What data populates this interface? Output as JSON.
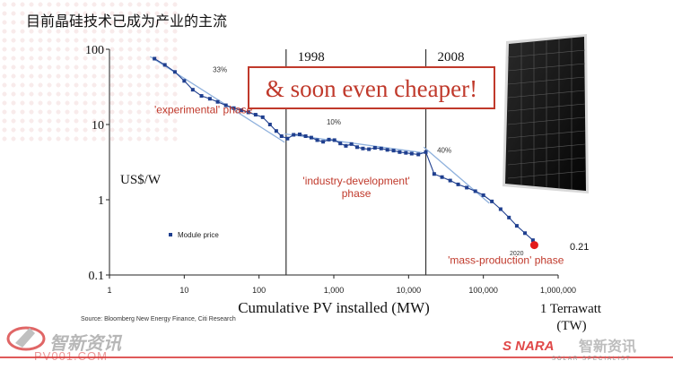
{
  "slide": {
    "title": "目前晶硅技术已成为产业的主流",
    "source": "Source: Bloomberg New Energy Finance, Citi Research"
  },
  "watermarks": {
    "left_cn": "智新资讯",
    "left_url": "PV001.COM",
    "right_cn": "智新资讯",
    "right_logo": "S NARA",
    "right_sub": "SOLAR SPECIALIST"
  },
  "colors": {
    "series": "#1f3f8f",
    "trend": "#8fb1dd",
    "annotation_red": "#c0392b",
    "highlight_dot": "#e41b1b",
    "footer_red": "#d93c3c"
  },
  "chart_data": {
    "type": "scatter",
    "x_scale": "log",
    "y_scale": "log",
    "xlim": [
      1,
      1000000
    ],
    "ylim": [
      0.1,
      100
    ],
    "xlabel": "Cumulative PV installed (MW)",
    "ylabel": "US$/W",
    "x_tick_labels": [
      "1",
      "10",
      "100",
      "1,000",
      "10,000",
      "100,000",
      "1,000,000"
    ],
    "x_ticks": [
      1,
      10,
      100,
      1000,
      10000,
      100000,
      1000000
    ],
    "y_tick_labels": [
      "0.1",
      "1",
      "10",
      "100"
    ],
    "y_ticks": [
      0.1,
      1,
      10,
      100
    ],
    "extra_x_label_1": "1 Terrawatt",
    "extra_x_label_2": "(TW)",
    "legend": "Module price",
    "legend_position": "left-middle",
    "vertical_markers": [
      {
        "x": 230,
        "label": "1998"
      },
      {
        "x": 17000,
        "label": "2008"
      }
    ],
    "learning_rates": [
      {
        "label": "33%",
        "x": 30,
        "y": 50
      },
      {
        "label": "10%",
        "x": 1000,
        "y": 10
      },
      {
        "label": "40%",
        "x": 30000,
        "y": 4.2
      }
    ],
    "phases": [
      {
        "line1": "'experimental' phase",
        "line2": "",
        "x": 18,
        "y": 14
      },
      {
        "line1": "'industry-development'",
        "line2": "phase",
        "x": 2000,
        "y": 1.6
      },
      {
        "line1": "'mass-production' phase",
        "line2": "",
        "x": 200000,
        "y": 0.14
      }
    ],
    "callout": "& soon even cheaper!",
    "label_2020": "2020",
    "value_label": "0.21",
    "highlight": {
      "x": 480000,
      "y": 0.25
    },
    "series": [
      {
        "name": "Module price",
        "x": [
          4,
          5.5,
          7.5,
          10,
          13,
          17,
          22,
          28,
          36,
          46,
          58,
          72,
          90,
          112,
          140,
          170,
          200,
          240,
          290,
          350,
          420,
          500,
          600,
          720,
          860,
          1020,
          1220,
          1450,
          1720,
          2050,
          2450,
          2950,
          3550,
          4300,
          5200,
          6300,
          7600,
          9200,
          11000,
          13500,
          17000,
          22000,
          28000,
          36000,
          46000,
          60000,
          78000,
          100000,
          130000,
          170000,
          220000,
          280000,
          360000,
          460000
        ],
        "y": [
          75,
          62,
          50,
          38,
          29,
          24,
          22,
          20,
          18,
          16.5,
          15.5,
          14.5,
          13.5,
          12.5,
          10,
          8.2,
          7,
          6.5,
          7.3,
          7.4,
          7.0,
          6.7,
          6.2,
          5.9,
          6.3,
          6.2,
          5.6,
          5.2,
          5.5,
          5.0,
          4.8,
          4.7,
          4.9,
          4.8,
          4.6,
          4.5,
          4.3,
          4.2,
          4.1,
          4.0,
          4.3,
          2.2,
          2.0,
          1.8,
          1.6,
          1.45,
          1.3,
          1.15,
          0.95,
          0.75,
          0.58,
          0.45,
          0.36,
          0.29
        ]
      }
    ],
    "trend_lines": [
      {
        "x": [
          3.5,
          220
        ],
        "y": [
          80,
          5.8
        ]
      },
      {
        "x": [
          220,
          16000
        ],
        "y": [
          7.5,
          4.2
        ]
      },
      {
        "x": [
          16000,
          120000
        ],
        "y": [
          5.0,
          0.9
        ]
      }
    ]
  }
}
